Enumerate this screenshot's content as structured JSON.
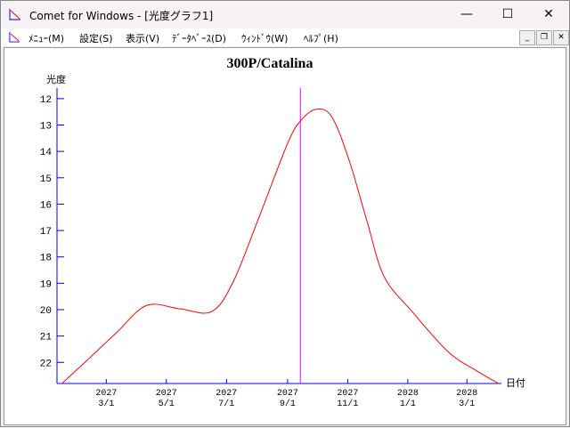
{
  "window": {
    "title": "Comet for Windows - [光度グラフ1]",
    "minimize_icon": "minimize-icon",
    "maximize_icon": "maximize-icon",
    "close_icon": "close-icon"
  },
  "menu": {
    "items": [
      {
        "label": "ﾒﾆｭｰ(M)"
      },
      {
        "label": "設定(S)"
      },
      {
        "label": "表示(V)"
      },
      {
        "label": "ﾃﾞｰﾀﾍﾞｰｽ(D)"
      },
      {
        "label": "ｳｨﾝﾄﾞｳ(W)"
      },
      {
        "label": "ﾍﾙﾌﾟ(H)"
      }
    ]
  },
  "colors": {
    "axis": "#0000ff",
    "curve": "#ff0000",
    "marker": "#ff00ff"
  },
  "chart_data": {
    "type": "line",
    "title": "300P/Catalina",
    "ylabel": "光度",
    "xlabel": "日付",
    "y_inverted": true,
    "ylim": [
      22.8,
      11.6
    ],
    "yticks": [
      12,
      13,
      14,
      15,
      16,
      17,
      18,
      19,
      20,
      21,
      22
    ],
    "xlim": [
      "2027-01-10",
      "2028-04-05"
    ],
    "xticks": [
      {
        "date": "2027-03-01",
        "year": "2027",
        "md": "3/1"
      },
      {
        "date": "2027-05-01",
        "year": "2027",
        "md": "5/1"
      },
      {
        "date": "2027-07-01",
        "year": "2027",
        "md": "7/1"
      },
      {
        "date": "2027-09-01",
        "year": "2027",
        "md": "9/1"
      },
      {
        "date": "2027-11-01",
        "year": "2027",
        "md": "11/1"
      },
      {
        "date": "2028-01-01",
        "year": "2028",
        "md": "1/1"
      },
      {
        "date": "2028-03-01",
        "year": "2028",
        "md": "3/1"
      }
    ],
    "current_date_marker": "2027-09-14",
    "series": [
      {
        "points": [
          [
            "2027-01-15",
            22.8
          ],
          [
            "2027-02-13",
            21.8
          ],
          [
            "2027-03-12",
            20.85
          ],
          [
            "2027-04-11",
            19.84
          ],
          [
            "2027-05-15",
            19.97
          ],
          [
            "2027-06-16",
            20.07
          ],
          [
            "2027-07-08",
            18.93
          ],
          [
            "2027-08-04",
            16.4
          ],
          [
            "2027-09-01",
            13.7
          ],
          [
            "2027-09-14",
            12.85
          ],
          [
            "2027-09-30",
            12.4
          ],
          [
            "2027-10-16",
            12.7
          ],
          [
            "2027-11-03",
            14.4
          ],
          [
            "2027-11-21",
            16.7
          ],
          [
            "2027-12-08",
            18.75
          ],
          [
            "2028-01-06",
            20.1
          ],
          [
            "2028-02-11",
            21.6
          ],
          [
            "2028-03-10",
            22.3
          ],
          [
            "2028-04-02",
            22.8
          ]
        ]
      }
    ]
  }
}
